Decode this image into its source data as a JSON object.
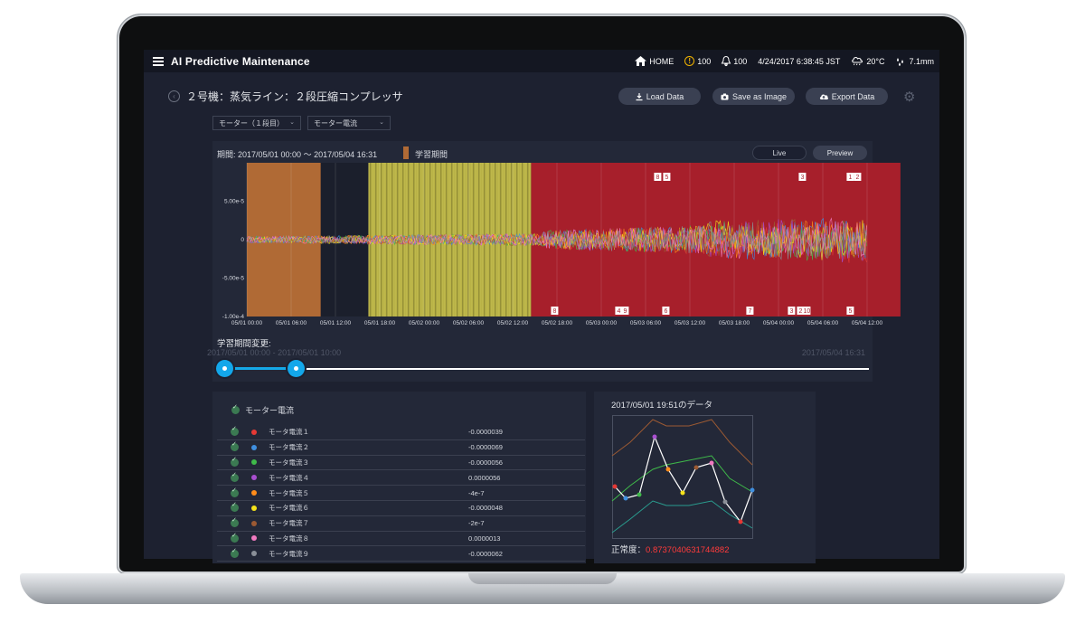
{
  "app": {
    "title": "AI Predictive Maintenance",
    "home": "HOME",
    "alerts_count": "100",
    "notifications_count": "100",
    "datetime": "4/24/2017 6:38:45 JST",
    "temperature": "20°C",
    "rain": "7.1mm"
  },
  "page": {
    "title": "２号機：蒸気ライン：２段圧縮コンプレッサ",
    "load_label": "Load Data",
    "save_label": "Save as Image",
    "export_label": "Export Data"
  },
  "filters": {
    "unit": "モーター（１段目）",
    "signal": "モーター電流"
  },
  "chart_panel": {
    "period": "期間: 2017/05/01 00:00 〜 2017/05/04 16:31",
    "legend_label": "学習期間",
    "live_label": "Live",
    "preview_label": "Preview"
  },
  "chart_data": {
    "type": "line",
    "y_ticks": [
      "5.00e-5",
      "0",
      "-5.00e-5",
      "-1.00e-4"
    ],
    "x_ticks": [
      "05/01 00:00",
      "05/01 06:00",
      "05/01 12:00",
      "05/01 18:00",
      "05/02 00:00",
      "05/02 06:00",
      "05/02 12:00",
      "05/02 18:00",
      "05/03 00:00",
      "05/03 06:00",
      "05/03 12:00",
      "05/03 18:00",
      "05/04 00:00",
      "05/04 06:00",
      "05/04 12:00"
    ],
    "ylim": [
      -0.0001,
      0.0001
    ],
    "regions": [
      {
        "kind": "training",
        "color": "#b06a35",
        "from": "05/01 00:00",
        "to": "05/01 10:00"
      },
      {
        "kind": "warning",
        "color": "#b6b044",
        "from": "05/01 16:30",
        "to": "05/02 14:30"
      },
      {
        "kind": "anomaly",
        "color": "#a71f2b",
        "from": "05/02 14:30",
        "to": "05/04 16:31"
      }
    ],
    "top_markers": [
      "8",
      "5",
      "3",
      "1",
      "2"
    ],
    "bottom_markers": [
      "8",
      "4",
      "9",
      "6",
      "7",
      "3",
      "2",
      "10",
      "5"
    ]
  },
  "slider": {
    "title": "学習期間変更:",
    "range_text": "2017/05/01 00:00 - 2017/05/01 10:00",
    "end_text": "2017/05/04 16:31"
  },
  "table": {
    "header": "モーター電流",
    "rows": [
      {
        "name": "モータ電流１",
        "value": "-0.0000039",
        "color": "#e53935"
      },
      {
        "name": "モータ電流２",
        "value": "-0.0000069",
        "color": "#3f8fe0"
      },
      {
        "name": "モータ電流３",
        "value": "-0.0000056",
        "color": "#3fba4a"
      },
      {
        "name": "モータ電流４",
        "value": "0.0000056",
        "color": "#a94fd0"
      },
      {
        "name": "モータ電流５",
        "value": "-4e-7",
        "color": "#ff8c1a"
      },
      {
        "name": "モータ電流６",
        "value": "-0.0000048",
        "color": "#f5e31a"
      },
      {
        "name": "モータ電流７",
        "value": "-2e-7",
        "color": "#9c5a33"
      },
      {
        "name": "モータ電流８",
        "value": "0.0000013",
        "color": "#f07ac0"
      },
      {
        "name": "モータ電流９",
        "value": "-0.0000062",
        "color": "#8a8f98"
      }
    ]
  },
  "mini_chart": {
    "title": "2017/05/01 19:51のデータ",
    "score_label": "正常度：",
    "score_value": "0.8737040631744882"
  }
}
